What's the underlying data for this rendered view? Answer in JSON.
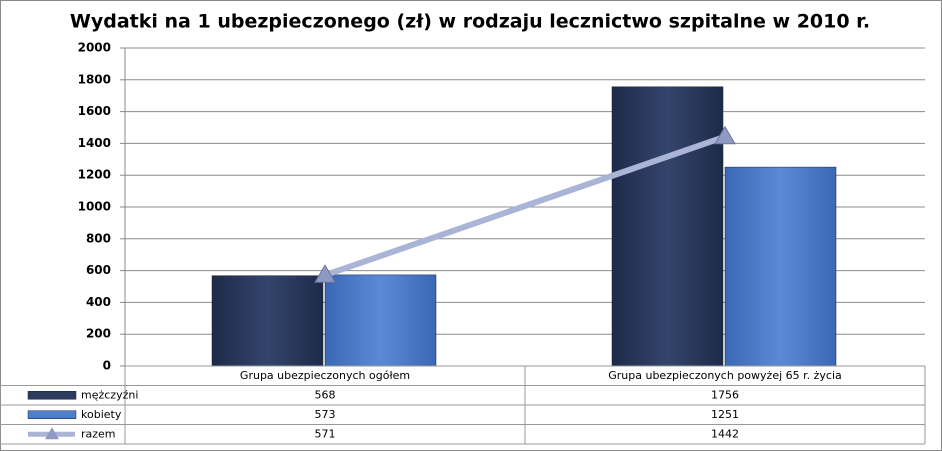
{
  "chart_data": {
    "type": "bar",
    "title": "Wydatki na 1 ubezpieczonego (zł) w rodzaju lecznictwo szpitalne  w 2010 r.",
    "categories": [
      "Grupa ubezpieczonych ogółem",
      "Grupa ubezpieczonych powyżej 65 r. życia"
    ],
    "series": [
      {
        "name": "mężczyźni",
        "color": "#2c3a5e",
        "values": [
          568,
          1756
        ]
      },
      {
        "name": "kobiety",
        "color": "#4f7fcc",
        "values": [
          573,
          1251
        ]
      },
      {
        "name": "razem",
        "color": "#a9b4d6",
        "type": "line",
        "values": [
          571,
          1442
        ]
      }
    ],
    "ylim": [
      0,
      2000
    ],
    "yticks": [
      0,
      200,
      400,
      600,
      800,
      1000,
      1200,
      1400,
      1600,
      1800,
      2000
    ],
    "grid": true
  }
}
